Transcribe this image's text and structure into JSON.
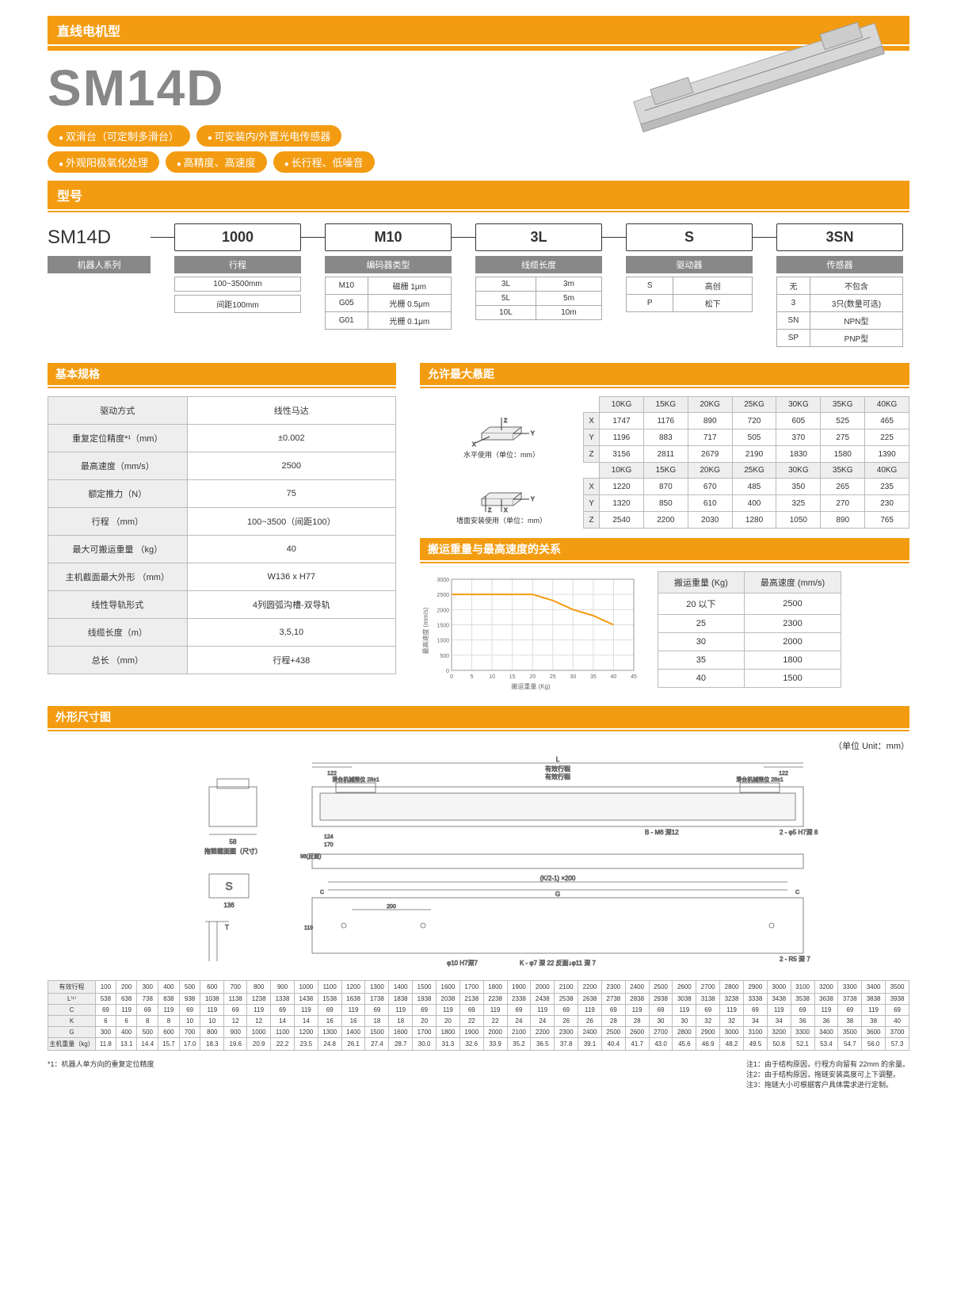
{
  "header": {
    "category": "直线电机型"
  },
  "product": {
    "name": "SM14D"
  },
  "features": {
    "row1": [
      "双滑台（可定制多滑台）",
      "可安装内/外置光电传感器"
    ],
    "row2": [
      "外观阳极氧化处理",
      "高精度、高速度",
      "长行程、低噪音"
    ]
  },
  "model_section_title": "型号",
  "model": {
    "parts": [
      "SM14D",
      "1000",
      "M10",
      "3L",
      "S",
      "3SN"
    ],
    "labels": [
      "机器人系列",
      "行程",
      "编码器类型",
      "线缆长度",
      "驱动器",
      "传感器"
    ],
    "stroke": {
      "range": "100~3500mm",
      "interval": "间距100mm"
    },
    "encoder": [
      [
        "M10",
        "磁栅 1μm"
      ],
      [
        "G05",
        "光栅 0.5μm"
      ],
      [
        "G01",
        "光栅 0.1μm"
      ]
    ],
    "cable": [
      [
        "3L",
        "3m"
      ],
      [
        "5L",
        "5m"
      ],
      [
        "10L",
        "10m"
      ]
    ],
    "driver": [
      [
        "S",
        "高创"
      ],
      [
        "P",
        "松下"
      ]
    ],
    "sensor": [
      [
        "无",
        "不包含"
      ],
      [
        "3",
        "3只(数量可选)"
      ],
      [
        "SN",
        "NPN型"
      ],
      [
        "SP",
        "PNP型"
      ]
    ]
  },
  "spec_title": "基本规格",
  "specs": [
    [
      "驱动方式",
      "线性马达"
    ],
    [
      "重复定位精度*¹（mm）",
      "±0.002"
    ],
    [
      "最高速度（mm/s）",
      "2500"
    ],
    [
      "额定推力（N）",
      "75"
    ],
    [
      "行程 （mm）",
      "100~3500（间距100）"
    ],
    [
      "最大可搬运重量 （kg）",
      "40"
    ],
    [
      "主机截面最大外形 （mm）",
      "W136 x H77"
    ],
    [
      "线性导轨形式",
      "4列圆弧沟槽-双导轨"
    ],
    [
      "线缆长度（m）",
      "3,5,10"
    ],
    [
      "总长 （mm）",
      "行程+438"
    ]
  ],
  "overhang_title": "允许最大悬距",
  "overhang": {
    "weights": [
      "10KG",
      "15KG",
      "20KG",
      "25KG",
      "30KG",
      "35KG",
      "40KG"
    ],
    "horizontal_label": "水平使用（单位：mm）",
    "wall_label": "墙面安装使用（单位：mm）",
    "horizontal": {
      "X": [
        1747,
        1176,
        890,
        720,
        605,
        525,
        465
      ],
      "Y": [
        1196,
        883,
        717,
        505,
        370,
        275,
        225
      ],
      "Z": [
        3156,
        2811,
        2679,
        2190,
        1830,
        1580,
        1390
      ]
    },
    "wall": {
      "X": [
        1220,
        870,
        670,
        485,
        350,
        265,
        235
      ],
      "Y": [
        1320,
        850,
        610,
        400,
        325,
        270,
        230
      ],
      "Z": [
        2540,
        2200,
        2030,
        1280,
        1050,
        890,
        765
      ]
    }
  },
  "speed_title": "搬运重量与最高速度的关系",
  "speed_chart": {
    "xlabel": "搬运重量 (Kg)",
    "ylabel": "最高速度 (mm/s)",
    "xlim": [
      0,
      45
    ],
    "ylim": [
      0,
      3000
    ],
    "xticks": [
      0,
      5,
      10,
      15,
      20,
      25,
      30,
      35,
      40,
      45
    ],
    "yticks": [
      0,
      500,
      1000,
      1500,
      2000,
      2500,
      3000
    ],
    "line_color": "#f39c12",
    "grid_color": "#ddd",
    "points": [
      [
        0,
        2500
      ],
      [
        20,
        2500
      ],
      [
        25,
        2300
      ],
      [
        30,
        2000
      ],
      [
        35,
        1800
      ],
      [
        40,
        1500
      ]
    ]
  },
  "speed_table": {
    "headers": [
      "搬运重量 (Kg)",
      "最高速度 (mm/s)"
    ],
    "rows": [
      [
        "20 以下",
        "2500"
      ],
      [
        "25",
        "2300"
      ],
      [
        "30",
        "2000"
      ],
      [
        "35",
        "1800"
      ],
      [
        "40",
        "1500"
      ]
    ]
  },
  "dim_title": "外形尺寸图",
  "unit_text": "（单位 Unit：mm）",
  "dim_table": {
    "row_headers": [
      "有效行程",
      "L⁽¹⁾",
      "C",
      "K",
      "G",
      "主机重量（kg）"
    ],
    "strokes": [
      100,
      200,
      300,
      400,
      500,
      600,
      700,
      800,
      900,
      1000,
      1100,
      1200,
      1300,
      1400,
      1500,
      1600,
      1700,
      1800,
      1900,
      2000,
      2100,
      2200,
      2300,
      2400,
      2500,
      2600,
      2700,
      2800,
      2900,
      3000,
      3100,
      3200,
      3300,
      3400,
      3500
    ],
    "L": [
      538,
      638,
      738,
      838,
      938,
      1038,
      1138,
      1238,
      1338,
      1438,
      1538,
      1638,
      1738,
      1838,
      1938,
      2038,
      2138,
      2238,
      2338,
      2438,
      2538,
      2638,
      2738,
      2838,
      2938,
      3038,
      3138,
      3238,
      3338,
      3438,
      3538,
      3638,
      3738,
      3838,
      3938
    ],
    "C": [
      69,
      119,
      69,
      119,
      69,
      119,
      69,
      119,
      69,
      119,
      69,
      119,
      69,
      119,
      69,
      119,
      69,
      119,
      69,
      119,
      69,
      119,
      69,
      119,
      69,
      119,
      69,
      119,
      69,
      119,
      69,
      119,
      69,
      119,
      69
    ],
    "K": [
      6,
      6,
      8,
      8,
      10,
      10,
      12,
      12,
      14,
      14,
      16,
      16,
      18,
      18,
      20,
      20,
      22,
      22,
      24,
      24,
      26,
      26,
      28,
      28,
      30,
      30,
      32,
      32,
      34,
      34,
      36,
      36,
      38,
      38,
      40
    ],
    "G": [
      300,
      400,
      500,
      600,
      700,
      800,
      900,
      1000,
      1100,
      1200,
      1300,
      1400,
      1500,
      1600,
      1700,
      1800,
      1900,
      2000,
      2100,
      2200,
      2300,
      2400,
      2500,
      2600,
      2700,
      2800,
      2900,
      3000,
      3100,
      3200,
      3300,
      3400,
      3500,
      3600,
      3700
    ],
    "weight": [
      "11.8",
      "13.1",
      "14.4",
      "15.7",
      "17.0",
      "18.3",
      "19.6",
      "20.9",
      "22.2",
      "23.5",
      "24.8",
      "26.1",
      "27.4",
      "28.7",
      "30.0",
      "31.3",
      "32.6",
      "33.9",
      "35.2",
      "36.5",
      "37.8",
      "39.1",
      "40.4",
      "41.7",
      "43.0",
      "45.6",
      "46.9",
      "48.2",
      "49.5",
      "50.8",
      "52.1",
      "53.4",
      "54.7",
      "56.0",
      "57.3"
    ]
  },
  "footnote": "*1：机器人单方向的重复定位精度",
  "notes": [
    "注1：由于结构原因，行程方向留有 22mm 的余量。",
    "注2：由于结构原因，拖链安装高度可上下调整。",
    "注3：拖链大小可根据客户具体需求进行定制。"
  ]
}
